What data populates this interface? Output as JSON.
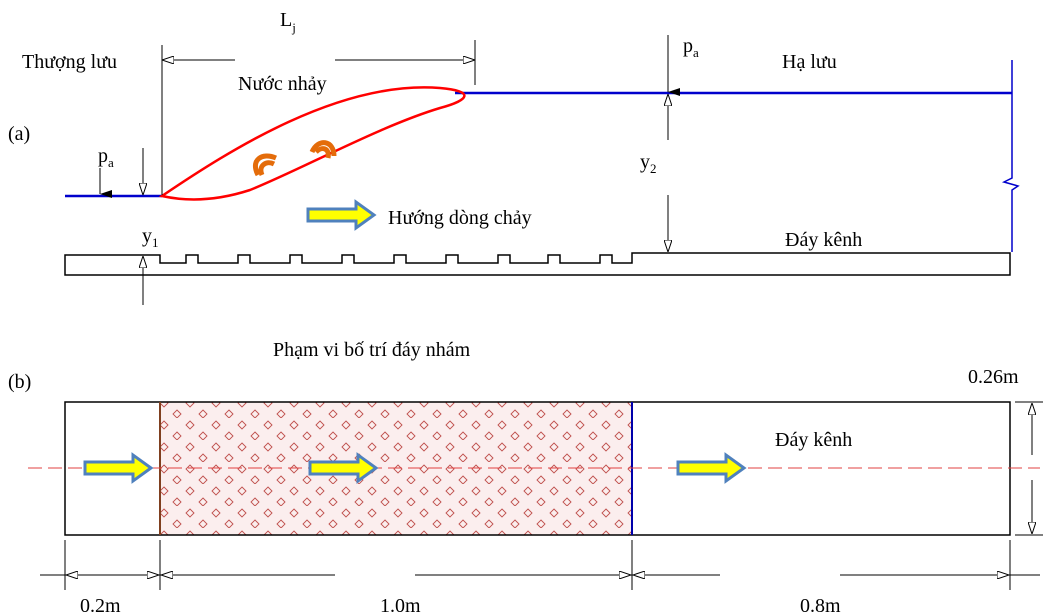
{
  "panel_a": {
    "label": "(a)",
    "upstream": "Thượng lưu",
    "downstream": "Hạ lưu",
    "jump": "Nước nhảy",
    "flow": "Hướng dòng chảy",
    "bed": "Đáy kênh",
    "jump_length": {
      "main": "L",
      "sub": "j"
    },
    "pressure_left": {
      "main": "p",
      "sub": "a"
    },
    "pressure_right": {
      "main": "p",
      "sub": "a"
    },
    "depth_1": {
      "main": "y",
      "sub": "1"
    },
    "depth_2": {
      "main": "y",
      "sub": "2"
    }
  },
  "panel_b": {
    "label": "(b)",
    "title": "Phạm vi bố trí đáy nhám",
    "bed": "Đáy kênh",
    "width": "0.26m",
    "segments": [
      "0.2m",
      "1.0m",
      "0.8m"
    ]
  }
}
